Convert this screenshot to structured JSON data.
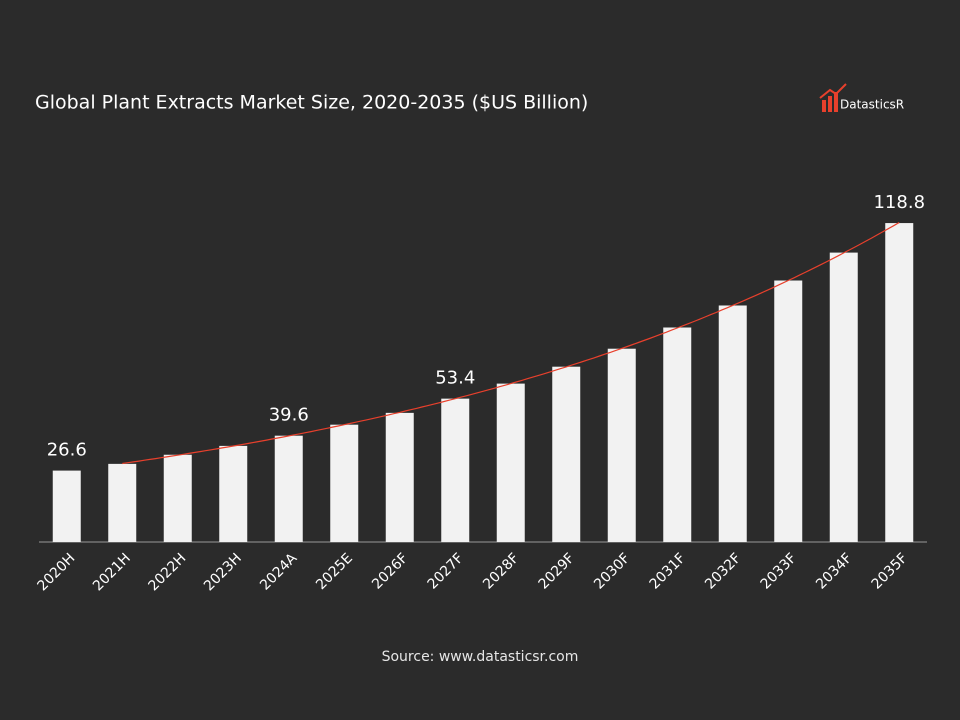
{
  "chart_data": {
    "type": "bar",
    "title": "Global Plant Extracts Market Size, 2020-2035 ($US Billion)",
    "logo": "DatasticsR",
    "source": "Source: www.datasticsr.com",
    "categories": [
      "2020H",
      "2021H",
      "2022H",
      "2023H",
      "2024A",
      "2025E",
      "2026F",
      "2027F",
      "2028F",
      "2029F",
      "2030F",
      "2031F",
      "2032F",
      "2033F",
      "2034F",
      "2035F"
    ],
    "values": [
      26.6,
      29.1,
      32.5,
      35.8,
      39.6,
      43.7,
      48.1,
      53.4,
      59.0,
      65.3,
      72.0,
      79.9,
      88.1,
      97.4,
      107.8,
      118.8
    ],
    "value_labels": [
      "26.6",
      null,
      null,
      null,
      "39.6",
      null,
      null,
      "53.4",
      null,
      null,
      null,
      null,
      null,
      null,
      null,
      "118.8"
    ],
    "color": "#f2f2f2",
    "trendline": {
      "color": "#e8402c"
    },
    "ylim": [
      0,
      130
    ]
  }
}
